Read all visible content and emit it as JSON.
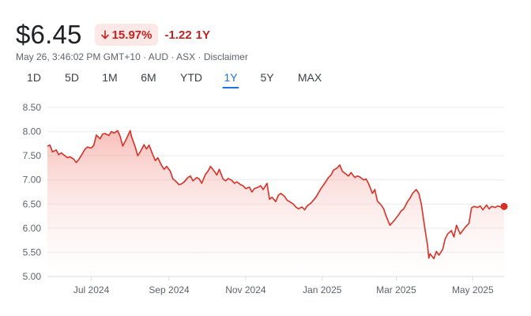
{
  "quote": {
    "price": "$6.45",
    "change_pct": "15.97%",
    "change_abs": "-1.22",
    "period": "1Y",
    "timestamp": "May 26, 3:46:02 PM GMT+10",
    "currency": "AUD",
    "exchange": "ASX",
    "disclaimer": "Disclaimer",
    "down_color": "#d93025",
    "badge_bg": "#fce8e6"
  },
  "tabs": [
    {
      "label": "1D"
    },
    {
      "label": "5D"
    },
    {
      "label": "1M"
    },
    {
      "label": "6M"
    },
    {
      "label": "YTD"
    },
    {
      "label": "1Y",
      "active": true
    },
    {
      "label": "5Y"
    },
    {
      "label": "MAX"
    }
  ],
  "chart_data": {
    "type": "area",
    "x_date_range": [
      "2024-05-27",
      "2025-05-26"
    ],
    "ylim": [
      5.0,
      8.5
    ],
    "yticks": [
      5.0,
      5.5,
      6.0,
      6.5,
      7.0,
      7.5,
      8.0,
      8.5
    ],
    "ytick_labels": [
      "5.00",
      "5.50",
      "6.00",
      "6.50",
      "7.00",
      "7.50",
      "8.00",
      "8.50"
    ],
    "xtick_labels": [
      {
        "date": "2024-07-01",
        "label": "Jul 2024"
      },
      {
        "date": "2024-09-01",
        "label": "Sep 2024"
      },
      {
        "date": "2024-11-01",
        "label": "Nov 2024"
      },
      {
        "date": "2025-01-01",
        "label": "Jan 2025"
      },
      {
        "date": "2025-03-01",
        "label": "Mar 2025"
      },
      {
        "date": "2025-05-01",
        "label": "May 2025"
      }
    ],
    "grid": true,
    "series": [
      {
        "color": "#d93025",
        "points": [
          [
            "2024-05-27",
            7.7
          ],
          [
            "2024-05-29",
            7.72
          ],
          [
            "2024-05-31",
            7.58
          ],
          [
            "2024-06-03",
            7.62
          ],
          [
            "2024-06-05",
            7.52
          ],
          [
            "2024-06-07",
            7.56
          ],
          [
            "2024-06-10",
            7.5
          ],
          [
            "2024-06-12",
            7.46
          ],
          [
            "2024-06-14",
            7.48
          ],
          [
            "2024-06-17",
            7.43
          ],
          [
            "2024-06-19",
            7.36
          ],
          [
            "2024-06-21",
            7.42
          ],
          [
            "2024-06-24",
            7.55
          ],
          [
            "2024-06-26",
            7.64
          ],
          [
            "2024-06-28",
            7.68
          ],
          [
            "2024-07-01",
            7.66
          ],
          [
            "2024-07-03",
            7.72
          ],
          [
            "2024-07-05",
            7.93
          ],
          [
            "2024-07-08",
            7.85
          ],
          [
            "2024-07-10",
            7.95
          ],
          [
            "2024-07-12",
            7.96
          ],
          [
            "2024-07-15",
            7.92
          ],
          [
            "2024-07-17",
            8.0
          ],
          [
            "2024-07-19",
            7.97
          ],
          [
            "2024-07-22",
            8.02
          ],
          [
            "2024-07-24",
            7.9
          ],
          [
            "2024-07-26",
            7.7
          ],
          [
            "2024-07-29",
            7.85
          ],
          [
            "2024-08-01",
            8.02
          ],
          [
            "2024-08-02",
            7.9
          ],
          [
            "2024-08-05",
            7.68
          ],
          [
            "2024-08-07",
            7.5
          ],
          [
            "2024-08-09",
            7.58
          ],
          [
            "2024-08-12",
            7.73
          ],
          [
            "2024-08-14",
            7.64
          ],
          [
            "2024-08-16",
            7.72
          ],
          [
            "2024-08-19",
            7.52
          ],
          [
            "2024-08-21",
            7.4
          ],
          [
            "2024-08-23",
            7.46
          ],
          [
            "2024-08-26",
            7.3
          ],
          [
            "2024-08-28",
            7.22
          ],
          [
            "2024-08-30",
            7.28
          ],
          [
            "2024-09-02",
            7.18
          ],
          [
            "2024-09-04",
            7.02
          ],
          [
            "2024-09-06",
            6.98
          ],
          [
            "2024-09-09",
            6.9
          ],
          [
            "2024-09-11",
            6.92
          ],
          [
            "2024-09-13",
            6.96
          ],
          [
            "2024-09-16",
            7.05
          ],
          [
            "2024-09-18",
            7.08
          ],
          [
            "2024-09-20",
            6.98
          ],
          [
            "2024-09-23",
            7.05
          ],
          [
            "2024-09-25",
            7.02
          ],
          [
            "2024-09-27",
            6.93
          ],
          [
            "2024-09-30",
            7.12
          ],
          [
            "2024-10-02",
            7.18
          ],
          [
            "2024-10-04",
            7.28
          ],
          [
            "2024-10-07",
            7.18
          ],
          [
            "2024-10-09",
            7.1
          ],
          [
            "2024-10-11",
            7.22
          ],
          [
            "2024-10-14",
            7.02
          ],
          [
            "2024-10-16",
            6.98
          ],
          [
            "2024-10-18",
            7.03
          ],
          [
            "2024-10-21",
            6.99
          ],
          [
            "2024-10-23",
            6.93
          ],
          [
            "2024-10-25",
            6.96
          ],
          [
            "2024-10-28",
            6.9
          ],
          [
            "2024-10-30",
            6.88
          ],
          [
            "2024-11-01",
            6.82
          ],
          [
            "2024-11-04",
            6.85
          ],
          [
            "2024-11-06",
            6.75
          ],
          [
            "2024-11-08",
            6.82
          ],
          [
            "2024-11-11",
            6.85
          ],
          [
            "2024-11-13",
            6.88
          ],
          [
            "2024-11-15",
            6.8
          ],
          [
            "2024-11-18",
            6.93
          ],
          [
            "2024-11-20",
            6.6
          ],
          [
            "2024-11-22",
            6.64
          ],
          [
            "2024-11-25",
            6.55
          ],
          [
            "2024-11-27",
            6.68
          ],
          [
            "2024-11-29",
            6.72
          ],
          [
            "2024-12-02",
            6.66
          ],
          [
            "2024-12-04",
            6.58
          ],
          [
            "2024-12-06",
            6.55
          ],
          [
            "2024-12-09",
            6.5
          ],
          [
            "2024-12-11",
            6.44
          ],
          [
            "2024-12-13",
            6.4
          ],
          [
            "2024-12-16",
            6.44
          ],
          [
            "2024-12-18",
            6.38
          ],
          [
            "2024-12-20",
            6.46
          ],
          [
            "2024-12-23",
            6.52
          ],
          [
            "2024-12-27",
            6.64
          ],
          [
            "2024-12-31",
            6.82
          ],
          [
            "2025-01-03",
            6.93
          ],
          [
            "2025-01-06",
            7.05
          ],
          [
            "2025-01-08",
            7.1
          ],
          [
            "2025-01-10",
            7.2
          ],
          [
            "2025-01-13",
            7.25
          ],
          [
            "2025-01-15",
            7.31
          ],
          [
            "2025-01-17",
            7.18
          ],
          [
            "2025-01-20",
            7.12
          ],
          [
            "2025-01-22",
            7.08
          ],
          [
            "2025-01-24",
            7.15
          ],
          [
            "2025-01-27",
            7.05
          ],
          [
            "2025-01-29",
            7.08
          ],
          [
            "2025-01-31",
            7.06
          ],
          [
            "2025-02-03",
            7.0
          ],
          [
            "2025-02-05",
            7.02
          ],
          [
            "2025-02-07",
            6.92
          ],
          [
            "2025-02-10",
            6.72
          ],
          [
            "2025-02-12",
            6.8
          ],
          [
            "2025-02-14",
            6.56
          ],
          [
            "2025-02-17",
            6.48
          ],
          [
            "2025-02-19",
            6.4
          ],
          [
            "2025-02-21",
            6.25
          ],
          [
            "2025-02-24",
            6.06
          ],
          [
            "2025-02-26",
            6.12
          ],
          [
            "2025-02-28",
            6.18
          ],
          [
            "2025-03-03",
            6.28
          ],
          [
            "2025-03-05",
            6.36
          ],
          [
            "2025-03-07",
            6.4
          ],
          [
            "2025-03-10",
            6.55
          ],
          [
            "2025-03-12",
            6.62
          ],
          [
            "2025-03-14",
            6.72
          ],
          [
            "2025-03-17",
            6.8
          ],
          [
            "2025-03-19",
            6.72
          ],
          [
            "2025-03-21",
            6.5
          ],
          [
            "2025-03-24",
            5.96
          ],
          [
            "2025-03-26",
            5.64
          ],
          [
            "2025-03-27",
            5.38
          ],
          [
            "2025-03-28",
            5.47
          ],
          [
            "2025-03-31",
            5.37
          ],
          [
            "2025-04-02",
            5.52
          ],
          [
            "2025-04-04",
            5.44
          ],
          [
            "2025-04-07",
            5.56
          ],
          [
            "2025-04-09",
            5.78
          ],
          [
            "2025-04-11",
            5.88
          ],
          [
            "2025-04-14",
            5.95
          ],
          [
            "2025-04-16",
            5.82
          ],
          [
            "2025-04-18",
            6.06
          ],
          [
            "2025-04-21",
            5.88
          ],
          [
            "2025-04-23",
            5.95
          ],
          [
            "2025-04-25",
            6.02
          ],
          [
            "2025-04-28",
            6.1
          ],
          [
            "2025-04-30",
            6.42
          ],
          [
            "2025-05-02",
            6.45
          ],
          [
            "2025-05-05",
            6.43
          ],
          [
            "2025-05-07",
            6.46
          ],
          [
            "2025-05-09",
            6.38
          ],
          [
            "2025-05-12",
            6.48
          ],
          [
            "2025-05-14",
            6.4
          ],
          [
            "2025-05-16",
            6.45
          ],
          [
            "2025-05-19",
            6.43
          ],
          [
            "2025-05-21",
            6.46
          ],
          [
            "2025-05-23",
            6.44
          ],
          [
            "2025-05-26",
            6.45
          ]
        ]
      }
    ]
  }
}
